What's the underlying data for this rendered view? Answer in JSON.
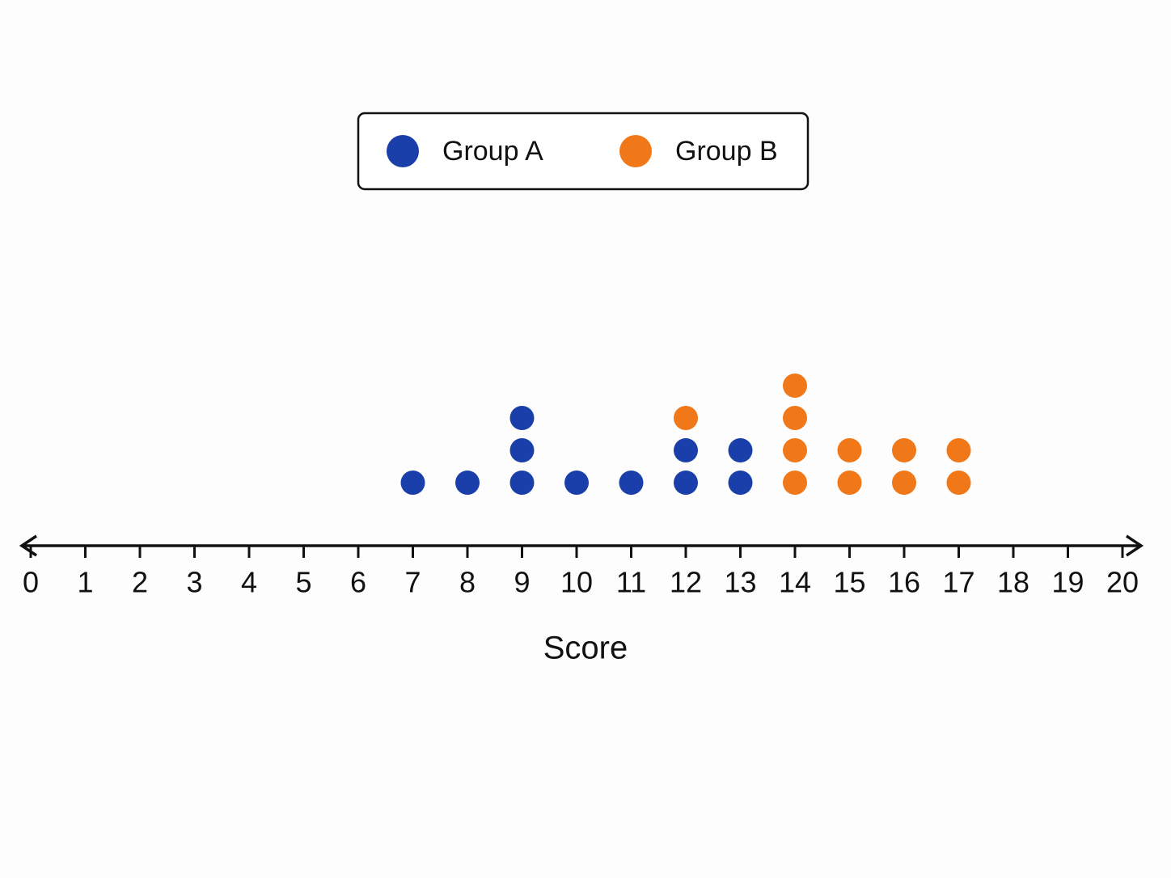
{
  "chart_data": {
    "type": "dot",
    "xlabel": "Score",
    "xlim": [
      0,
      20
    ],
    "xticks": [
      0,
      1,
      2,
      3,
      4,
      5,
      6,
      7,
      8,
      9,
      10,
      11,
      12,
      13,
      14,
      15,
      16,
      17,
      18,
      19,
      20
    ],
    "series": [
      {
        "name": "Group A",
        "color": "#1a3faa",
        "values": [
          7,
          8,
          9,
          9,
          9,
          10,
          11,
          12,
          12,
          13,
          13
        ]
      },
      {
        "name": "Group B",
        "color": "#f07818",
        "values": [
          12,
          14,
          14,
          14,
          14,
          15,
          15,
          16,
          16,
          17,
          17
        ]
      }
    ]
  }
}
